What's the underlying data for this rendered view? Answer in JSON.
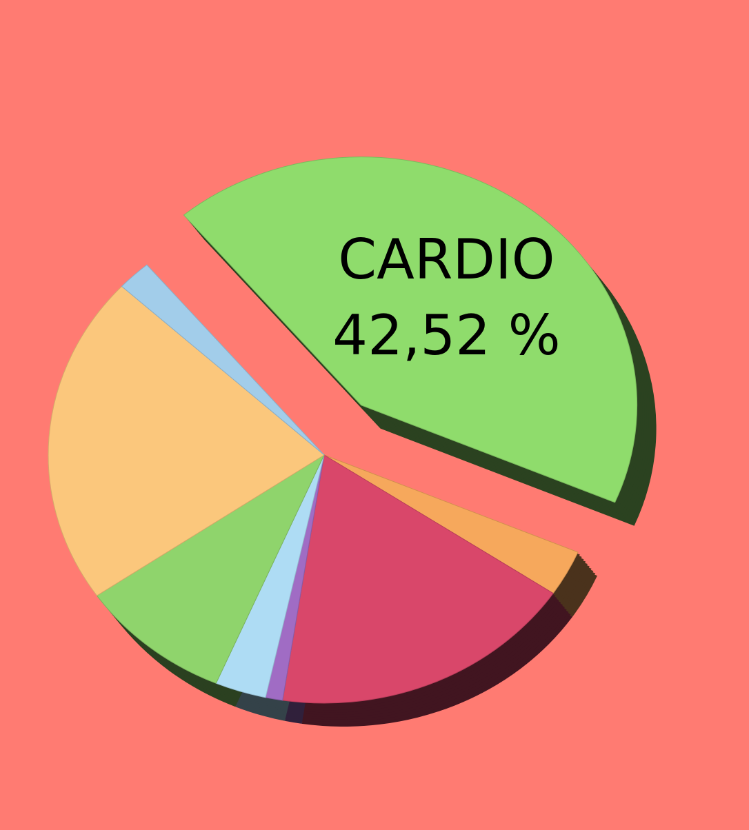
{
  "chart_data": {
    "type": "pie",
    "categories": [
      "CARDIO",
      null,
      null,
      null,
      null,
      null,
      null,
      null
    ],
    "values": [
      42.52,
      3,
      18,
      1,
      3,
      9,
      21.48,
      2
    ],
    "value_labels": [
      "42,52 %",
      null,
      null,
      null,
      null,
      null,
      null,
      null
    ],
    "colors": [
      "#8fdc6c",
      "#f6a85c",
      "#d9476a",
      "#a06cc4",
      "#aedcf4",
      "#8fd46c",
      "#fbc77c",
      "#a2cdea"
    ],
    "exploded": [
      0
    ]
  }
}
